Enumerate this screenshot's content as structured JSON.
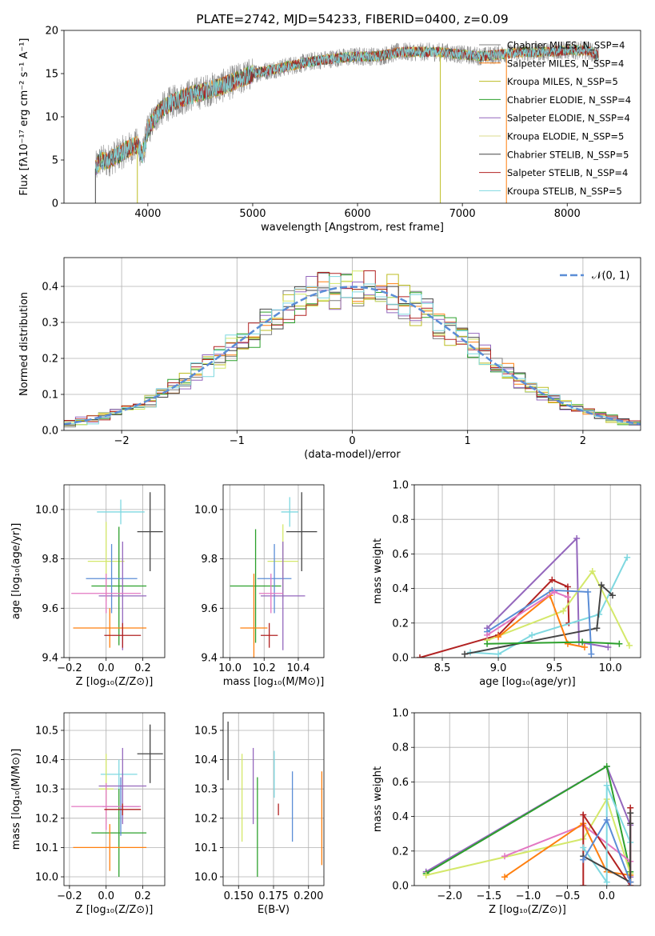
{
  "chart_data": [
    {
      "type": "line",
      "id": "spectrum",
      "title": "PLATE=2742, MJD=54233, FIBERID=0400, z=0.09",
      "xlabel": "wavelength [Angstrom, rest frame]",
      "ylabel": "Flux [fλ10⁻¹⁷ erg cm⁻² s⁻¹ A⁻¹]",
      "xlim": [
        3200,
        8700
      ],
      "ylim": [
        0,
        20
      ],
      "xticks": [
        "4000",
        "5000",
        "6000",
        "7000",
        "8000"
      ],
      "yticks": [
        "0",
        "5",
        "10",
        "15",
        "20"
      ],
      "grid": false,
      "legend_position": "upper-right",
      "profile_x": [
        3500,
        3550,
        3600,
        3700,
        3800,
        3900,
        3950,
        4000,
        4100,
        4200,
        4300,
        4400,
        4500,
        4600,
        4700,
        4800,
        4900,
        5000,
        5200,
        5400,
        5600,
        5800,
        6000,
        6200,
        6400,
        6600,
        6800,
        7000,
        7200,
        7400,
        7600,
        7800,
        8000,
        8200,
        8300
      ],
      "profile_y": [
        4,
        5,
        4.8,
        5.5,
        6.2,
        6.8,
        5.5,
        8.5,
        10.5,
        11.5,
        12,
        12.5,
        12.8,
        13.2,
        13.5,
        14,
        14.5,
        15,
        15.5,
        16,
        16.5,
        16.8,
        17,
        17,
        17.5,
        17.5,
        17.5,
        17.2,
        17,
        17.3,
        17.5,
        17.5,
        17.7,
        17.7,
        17
      ],
      "spikes": [
        {
          "x": 3500,
          "y": 0
        },
        {
          "x": 3900,
          "y": 0
        },
        {
          "x": 6790,
          "y": 0
        },
        {
          "x": 7420,
          "y": 0
        }
      ],
      "series": [
        {
          "name": "Chabrier MILES, N_SSP=4",
          "color": "#7f7f7f"
        },
        {
          "name": "Salpeter MILES, N_SSP=4",
          "color": "#ff7f0e"
        },
        {
          "name": "Kroupa MILES, N_SSP=5",
          "color": "#bcbd22"
        },
        {
          "name": "Chabrier ELODIE, N_SSP=4",
          "color": "#2ca02c"
        },
        {
          "name": "Salpeter ELODIE, N_SSP=4",
          "color": "#9467bd"
        },
        {
          "name": "Kroupa ELODIE, N_SSP=5",
          "color": "#dbdb8d"
        },
        {
          "name": "Chabrier STELIB, N_SSP=5",
          "color": "#444444"
        },
        {
          "name": "Salpeter STELIB, N_SSP=4",
          "color": "#b22222"
        },
        {
          "name": "Kroupa STELIB, N_SSP=5",
          "color": "#7fd8e0"
        }
      ]
    },
    {
      "type": "line",
      "id": "residuals",
      "xlabel": "(data-model)/error",
      "ylabel": "Normed distribution",
      "xlim": [
        -2.5,
        2.5
      ],
      "ylim": [
        0,
        0.48
      ],
      "xticks": [
        "−2",
        "−1",
        "0",
        "1",
        "2"
      ],
      "yticks": [
        "0.0",
        "0.1",
        "0.2",
        "0.3",
        "0.4"
      ],
      "grid": true,
      "legend_position": "upper-right",
      "gaussian_label": "𝒩(0, 1)",
      "gaussian_color": "#5b8dd6",
      "bin_width": 0.1,
      "bin_start": -2.5,
      "histogram_colors": [
        "#7f7f7f",
        "#ff7f0e",
        "#bcbd22",
        "#2ca02c",
        "#9467bd",
        "#d4e86a",
        "#444444",
        "#b22222",
        "#7fd8e0"
      ]
    },
    {
      "type": "scatter",
      "id": "age-vs-Z",
      "xlabel": "Z [log₁₀(Z/Z⊙)]",
      "ylabel": "age  [log₁₀(age/yr)]",
      "xlim": [
        -0.23,
        0.32
      ],
      "ylim": [
        9.4,
        10.1
      ],
      "xticks": [
        "−0.2",
        "0.0",
        "0.2"
      ],
      "yticks": [
        "9.4",
        "9.6",
        "9.8",
        "10.0"
      ],
      "grid": true,
      "points": [
        {
          "x": 0.24,
          "y": 9.91,
          "xerr": 0.07,
          "yerr": 0.16,
          "color": "#444444"
        },
        {
          "x": 0.08,
          "y": 9.99,
          "xerr": 0.13,
          "yerr": 0.05,
          "color": "#7fd8e0"
        },
        {
          "x": 0.0,
          "y": 9.79,
          "xerr": 0.1,
          "yerr": 0.16,
          "color": "#d4e86a"
        },
        {
          "x": 0.07,
          "y": 9.69,
          "xerr": 0.15,
          "yerr": 0.24,
          "color": "#2ca02c"
        },
        {
          "x": 0.03,
          "y": 9.72,
          "xerr": 0.14,
          "yerr": 0.14,
          "color": "#5b8dd6"
        },
        {
          "x": 0.09,
          "y": 9.65,
          "xerr": 0.13,
          "yerr": 0.22,
          "color": "#9467bd"
        },
        {
          "x": 0.0,
          "y": 9.66,
          "xerr": 0.19,
          "yerr": 0.08,
          "color": "#e377c2"
        },
        {
          "x": 0.02,
          "y": 9.52,
          "xerr": 0.2,
          "yerr": 0.08,
          "color": "#ff7f0e"
        },
        {
          "x": 0.09,
          "y": 9.49,
          "xerr": 0.1,
          "yerr": 0.05,
          "color": "#b22222"
        }
      ]
    },
    {
      "type": "scatter",
      "id": "age-vs-mass",
      "xlabel": "mass [log₁₀(M/M⊙)]",
      "ylabel": "",
      "xlim": [
        9.96,
        10.55
      ],
      "ylim": [
        9.4,
        10.1
      ],
      "xticks": [
        "10.0",
        "10.2",
        "10.4"
      ],
      "yticks": [
        "9.4",
        "9.6",
        "9.8",
        "10.0"
      ],
      "grid": true,
      "points": [
        {
          "x": 10.42,
          "y": 9.91,
          "xerr": 0.09,
          "yerr": 0.16,
          "color": "#444444"
        },
        {
          "x": 10.35,
          "y": 9.99,
          "xerr": 0.05,
          "yerr": 0.06,
          "color": "#7fd8e0"
        },
        {
          "x": 10.31,
          "y": 9.79,
          "xerr": 0.09,
          "yerr": 0.15,
          "color": "#d4e86a"
        },
        {
          "x": 10.15,
          "y": 9.69,
          "xerr": 0.15,
          "yerr": 0.23,
          "color": "#2ca02c"
        },
        {
          "x": 10.26,
          "y": 9.72,
          "xerr": 0.1,
          "yerr": 0.14,
          "color": "#5b8dd6"
        },
        {
          "x": 10.31,
          "y": 9.65,
          "xerr": 0.13,
          "yerr": 0.22,
          "color": "#9467bd"
        },
        {
          "x": 10.24,
          "y": 9.66,
          "xerr": 0.07,
          "yerr": 0.08,
          "color": "#e377c2"
        },
        {
          "x": 10.14,
          "y": 9.52,
          "xerr": 0.08,
          "yerr": 0.22,
          "color": "#ff7f0e"
        },
        {
          "x": 10.23,
          "y": 9.49,
          "xerr": 0.05,
          "yerr": 0.05,
          "color": "#b22222"
        }
      ]
    },
    {
      "type": "line",
      "id": "mass-weight-vs-age",
      "xlabel": "age  [log₁₀(age/yr)]",
      "ylabel": "mass weight",
      "xlim": [
        8.25,
        10.27
      ],
      "ylim": [
        0,
        1
      ],
      "xticks": [
        "8.5",
        "9.0",
        "9.5",
        "10.0"
      ],
      "yticks": [
        "0.0",
        "0.2",
        "0.4",
        "0.6",
        "0.8",
        "1.0"
      ],
      "grid": true,
      "series": [
        {
          "color": "#9467bd",
          "x": [
            8.9,
            9.7,
            9.72,
            9.98
          ],
          "y": [
            0.17,
            0.69,
            0.09,
            0.06
          ]
        },
        {
          "color": "#b22222",
          "x": [
            8.3,
            9.0,
            9.48,
            9.62,
            9.63
          ],
          "y": [
            0.0,
            0.13,
            0.45,
            0.41,
            0.2
          ]
        },
        {
          "color": "#7fd8e0",
          "x": [
            8.75,
            9.0,
            9.3,
            9.9,
            10.15
          ],
          "y": [
            0.03,
            0.02,
            0.13,
            0.25,
            0.58
          ]
        },
        {
          "color": "#d4e86a",
          "x": [
            8.9,
            9.58,
            9.84,
            10.17
          ],
          "y": [
            0.1,
            0.27,
            0.5,
            0.07
          ]
        },
        {
          "color": "#444444",
          "x": [
            8.7,
            9.88,
            9.92,
            10.02
          ],
          "y": [
            0.02,
            0.17,
            0.42,
            0.36
          ]
        },
        {
          "color": "#5b8dd6",
          "x": [
            8.9,
            9.48,
            9.8,
            9.83
          ],
          "y": [
            0.15,
            0.39,
            0.38,
            0.02
          ]
        },
        {
          "color": "#ff7f0e",
          "x": [
            9.0,
            9.46,
            9.62,
            9.77
          ],
          "y": [
            0.12,
            0.36,
            0.08,
            0.06
          ]
        },
        {
          "color": "#e377c2",
          "x": [
            8.9,
            9.5,
            9.62
          ],
          "y": [
            0.13,
            0.38,
            0.35
          ]
        },
        {
          "color": "#2ca02c",
          "x": [
            8.9,
            9.75,
            10.08
          ],
          "y": [
            0.08,
            0.09,
            0.08
          ]
        }
      ]
    },
    {
      "type": "scatter",
      "id": "mass-vs-Z",
      "xlabel": "Z [log₁₀(Z/Z⊙)]",
      "ylabel": "mass [log₁₀(M/M⊙)]",
      "xlim": [
        -0.23,
        0.32
      ],
      "ylim": [
        9.97,
        10.56
      ],
      "xticks": [
        "−0.2",
        "0.0",
        "0.2"
      ],
      "yticks": [
        "10.0",
        "10.1",
        "10.2",
        "10.3",
        "10.4",
        "10.5"
      ],
      "grid": true,
      "points": [
        {
          "x": 0.24,
          "y": 10.42,
          "xerr": 0.07,
          "yerr": 0.1,
          "color": "#444444"
        },
        {
          "x": 0.07,
          "y": 10.35,
          "xerr": 0.1,
          "yerr": 0.05,
          "color": "#7fd8e0"
        },
        {
          "x": 0.0,
          "y": 10.3,
          "xerr": 0.04,
          "yerr": 0.12,
          "color": "#d4e86a"
        },
        {
          "x": 0.07,
          "y": 10.15,
          "xerr": 0.15,
          "yerr": 0.15,
          "color": "#2ca02c"
        },
        {
          "x": 0.08,
          "y": 10.24,
          "xerr": 0.1,
          "yerr": 0.1,
          "color": "#5b8dd6"
        },
        {
          "x": 0.09,
          "y": 10.31,
          "xerr": 0.13,
          "yerr": 0.13,
          "color": "#9467bd"
        },
        {
          "x": 0.0,
          "y": 10.24,
          "xerr": 0.19,
          "yerr": 0.08,
          "color": "#e377c2"
        },
        {
          "x": 0.02,
          "y": 10.1,
          "xerr": 0.2,
          "yerr": 0.08,
          "color": "#ff7f0e"
        },
        {
          "x": 0.09,
          "y": 10.23,
          "xerr": 0.1,
          "yerr": 0.02,
          "color": "#b22222"
        }
      ]
    },
    {
      "type": "scatter",
      "id": "mass-vs-EBV",
      "xlabel": "E(B-V)",
      "ylabel": "",
      "xlim": [
        0.139,
        0.211
      ],
      "ylim": [
        9.97,
        10.56
      ],
      "xticks": [
        "0.150",
        "0.175",
        "0.200"
      ],
      "yticks": [
        "10.0",
        "10.1",
        "10.2",
        "10.3",
        "10.4",
        "10.5"
      ],
      "grid": true,
      "points": [
        {
          "x": 0.1425,
          "y": 10.43,
          "yerr": 0.1,
          "color": "#444444"
        },
        {
          "x": 0.1525,
          "y": 10.27,
          "yerr": 0.15,
          "color": "#d4e86a"
        },
        {
          "x": 0.1605,
          "y": 10.31,
          "yerr": 0.13,
          "color": "#9467bd"
        },
        {
          "x": 0.1635,
          "y": 10.17,
          "yerr": 0.17,
          "color": "#2ca02c"
        },
        {
          "x": 0.1755,
          "y": 10.35,
          "yerr": 0.08,
          "color": "#7fd8e0"
        },
        {
          "x": 0.1785,
          "y": 10.23,
          "yerr": 0.02,
          "color": "#b22222"
        },
        {
          "x": 0.1885,
          "y": 10.24,
          "yerr": 0.12,
          "color": "#5b8dd6"
        },
        {
          "x": 0.2095,
          "y": 10.2,
          "yerr": 0.16,
          "color": "#ff7f0e"
        }
      ]
    },
    {
      "type": "line",
      "id": "mass-weight-vs-Z",
      "xlabel": "Z [log₁₀(Z/Z⊙)]",
      "ylabel": "mass weight",
      "xlim": [
        -2.45,
        0.43
      ],
      "ylim": [
        0,
        1
      ],
      "xticks": [
        "−2.0",
        "−1.5",
        "−1.0",
        "−0.5",
        "0.0"
      ],
      "yticks": [
        "0.0",
        "0.2",
        "0.4",
        "0.6",
        "0.8",
        "1.0"
      ],
      "grid": true,
      "series": [
        {
          "color": "#9467bd",
          "x": [
            -2.3,
            0.0,
            0.3,
            0.3
          ],
          "y": [
            0.08,
            0.69,
            0.35,
            0.05
          ]
        },
        {
          "color": "#2ca02c",
          "x": [
            -2.3,
            0.0,
            0.3
          ],
          "y": [
            0.07,
            0.69,
            0.08
          ]
        },
        {
          "color": "#d4e86a",
          "x": [
            -2.3,
            -0.3,
            0.0,
            0.3
          ],
          "y": [
            0.06,
            0.27,
            0.5,
            0.07
          ]
        },
        {
          "color": "#e377c2",
          "x": [
            -1.3,
            -0.3,
            0.3
          ],
          "y": [
            0.17,
            0.35,
            0.14
          ]
        },
        {
          "color": "#ff7f0e",
          "x": [
            -1.3,
            -0.3,
            0.0,
            0.3
          ],
          "y": [
            0.05,
            0.36,
            0.08,
            0.06
          ]
        },
        {
          "color": "#b22222",
          "x": [
            -0.3,
            -0.3,
            0.3,
            0.3
          ],
          "y": [
            0.0,
            0.41,
            0.0,
            0.45
          ]
        },
        {
          "color": "#7fd8e0",
          "x": [
            -0.3,
            0.0,
            0.0,
            0.3
          ],
          "y": [
            0.22,
            0.02,
            0.58,
            0.25
          ]
        },
        {
          "color": "#444444",
          "x": [
            -0.3,
            0.3,
            0.3,
            0.3
          ],
          "y": [
            0.17,
            0.02,
            0.42,
            0.36
          ]
        },
        {
          "color": "#5b8dd6",
          "x": [
            -0.3,
            0.0,
            0.3
          ],
          "y": [
            0.15,
            0.38,
            0.02
          ]
        }
      ]
    }
  ]
}
